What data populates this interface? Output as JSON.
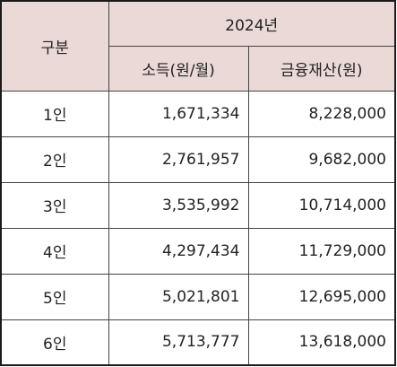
{
  "header": {
    "category": "구분",
    "year": "2024년",
    "income": "소득(원/월)",
    "assets": "금융재산(원)"
  },
  "rows": [
    {
      "label": "1인",
      "income": "1,671,334",
      "assets": "8,228,000"
    },
    {
      "label": "2인",
      "income": "2,761,957",
      "assets": "9,682,000"
    },
    {
      "label": "3인",
      "income": "3,535,992",
      "assets": "10,714,000"
    },
    {
      "label": "4인",
      "income": "4,297,434",
      "assets": "11,729,000"
    },
    {
      "label": "5인",
      "income": "5,021,801",
      "assets": "12,695,000"
    },
    {
      "label": "6인",
      "income": "5,713,777",
      "assets": "13,618,000"
    }
  ]
}
